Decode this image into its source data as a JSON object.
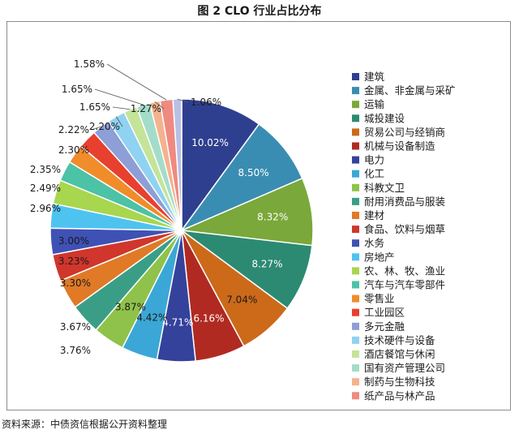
{
  "figure": {
    "title": "图 2   CLO 行业占比分布",
    "source": "资料来源：中债资信根据公开资料整理"
  },
  "chart_data": {
    "type": "pie",
    "title": "",
    "legend_position": "right",
    "slices": [
      {
        "label": "建筑",
        "value": 10.02,
        "value_label": "10.02%",
        "color": "#2f3f8f"
      },
      {
        "label": "金属、非金属与采矿",
        "value": 8.5,
        "value_label": "8.50%",
        "color": "#3a8db2"
      },
      {
        "label": "运输",
        "value": 8.32,
        "value_label": "8.32%",
        "color": "#7aa83a"
      },
      {
        "label": "城投建设",
        "value": 8.27,
        "value_label": "8.27%",
        "color": "#2c8a72"
      },
      {
        "label": "贸易公司与经销商",
        "value": 7.04,
        "value_label": "7.04%",
        "color": "#cc6a1a"
      },
      {
        "label": "机械与设备制造",
        "value": 6.16,
        "value_label": "6.16%",
        "color": "#b02a22"
      },
      {
        "label": "电力",
        "value": 4.71,
        "value_label": "4.71%",
        "color": "#34429c"
      },
      {
        "label": "化工",
        "value": 4.42,
        "value_label": "4.42%",
        "color": "#3ba7d6"
      },
      {
        "label": "科教文卫",
        "value": 3.87,
        "value_label": "3.87%",
        "color": "#8fc24a"
      },
      {
        "label": "耐用消费品与服装",
        "value": 3.76,
        "value_label": "3.76%",
        "color": "#3a9e86"
      },
      {
        "label": "建材",
        "value": 3.67,
        "value_label": "3.67%",
        "color": "#e07a26"
      },
      {
        "label": "食品、饮料与烟草",
        "value": 3.3,
        "value_label": "3.30%",
        "color": "#d0362c"
      },
      {
        "label": "水务",
        "value": 3.23,
        "value_label": "3.23%",
        "color": "#3f51b5"
      },
      {
        "label": "房地产",
        "value": 3.0,
        "value_label": "3.00%",
        "color": "#4fc3f0"
      },
      {
        "label": "农、林、牧、渔业",
        "value": 2.96,
        "value_label": "2.96%",
        "color": "#a8d64e"
      },
      {
        "label": "汽车与汽车零部件",
        "value": 2.49,
        "value_label": "2.49%",
        "color": "#4cc2a6"
      },
      {
        "label": "零售业",
        "value": 2.35,
        "value_label": "2.35%",
        "color": "#f08c2a"
      },
      {
        "label": "工业园区",
        "value": 2.3,
        "value_label": "2.30%",
        "color": "#e8402e"
      },
      {
        "label": "多元金融",
        "value": 2.22,
        "value_label": "2.22%",
        "color": "#8e9ed6"
      },
      {
        "label": "技术硬件与设备",
        "value": 2.2,
        "value_label": "2.20%",
        "color": "#8fd2f2"
      },
      {
        "label": "酒店餐馆与休闲",
        "value": 1.65,
        "value_label": "1.65%",
        "color": "#c4e49a"
      },
      {
        "label": "国有资产管理公司",
        "value": 1.65,
        "value_label": "1.65%",
        "color": "#a3ddca"
      },
      {
        "label": "制药与生物科技",
        "value": 1.27,
        "value_label": "1.27%",
        "color": "#f5b28e"
      },
      {
        "label": "纸产品与林产品",
        "value": 1.58,
        "value_label": "1.58%",
        "color": "#ef8a80"
      },
      {
        "label": "",
        "value": 1.06,
        "value_label": "1.06%",
        "color": "#b9c0e6"
      }
    ]
  }
}
